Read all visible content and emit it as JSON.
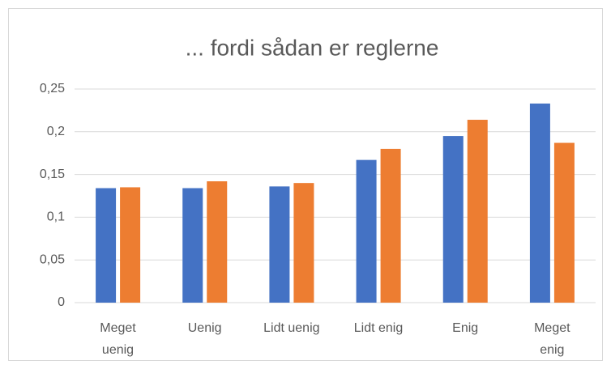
{
  "chart_data": {
    "type": "bar",
    "title": "... fordi sådan er reglerne",
    "categories": [
      "Meget\nuenig",
      "Uenig",
      "Lidt uenig",
      "Lidt enig",
      "Enig",
      "Meget\nenig"
    ],
    "series": [
      {
        "color": "#4472c4",
        "values": [
          0.134,
          0.134,
          0.136,
          0.167,
          0.195,
          0.233
        ]
      },
      {
        "color": "#ed7d31",
        "values": [
          0.135,
          0.142,
          0.14,
          0.18,
          0.214,
          0.187
        ]
      }
    ],
    "ylim": [
      0,
      0.25
    ],
    "yticks": [
      0,
      {
        "value": 0.05,
        "label": "0,05"
      },
      {
        "value": 0.1,
        "label": "0,1"
      },
      {
        "value": 0.15,
        "label": "0,15"
      },
      {
        "value": 0.2,
        "label": "0,2"
      },
      {
        "value": 0.25,
        "label": "0,25"
      }
    ],
    "grid": true
  }
}
